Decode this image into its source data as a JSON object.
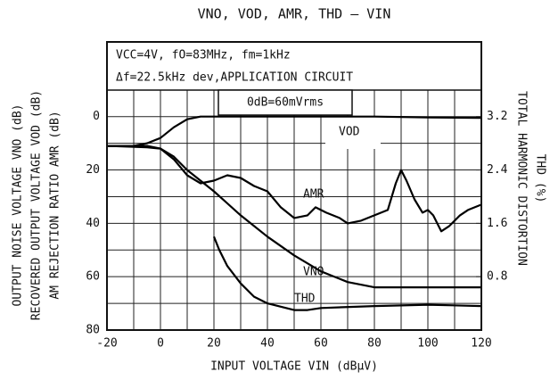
{
  "chart_data": {
    "type": "line",
    "title": "VNO, VOD, AMR, THD — VIN",
    "annotations": [
      "VCC=4V, fO=83MHz, fm=1kHz",
      "Δf=22.5kHz dev,APPLICATION CIRCUIT",
      "0dB=60mVrms"
    ],
    "x_label": "INPUT VOLTAGE  VIN (dBμV)",
    "y_label": [
      "OUTPUT NOISE VOLTAGE  VNO (dB)",
      "RECOVERED OUTPUT VOLTAGE  VOD (dB)",
      "AM REJECTION RATIO  AMR (dB)"
    ],
    "y2_label": [
      "TOTAL HARMONIC DISTORTION",
      "THD (%)"
    ],
    "xlim": [
      -20,
      120
    ],
    "xticks": [
      -20,
      0,
      20,
      40,
      60,
      80,
      100,
      120
    ],
    "ylim": [
      -28,
      80
    ],
    "y_reversed": true,
    "yticks": [
      0,
      20,
      40,
      60,
      80
    ],
    "y2lim": [
      0,
      4.32
    ],
    "y2ticks": [
      0.8,
      1.6,
      2.4,
      3.2
    ],
    "grid": true,
    "series": [
      {
        "name": "VOD",
        "color": "#000000",
        "x": [
          -20,
          -10,
          -5,
          0,
          5,
          10,
          15,
          20,
          40,
          60,
          80,
          100,
          120
        ],
        "values": [
          11,
          11,
          10,
          8,
          4,
          1,
          0,
          0,
          0,
          0,
          0,
          0.3,
          0.5
        ]
      },
      {
        "name": "AMR",
        "color": "#000000",
        "x": [
          -20,
          -5,
          0,
          5,
          10,
          15,
          20,
          25,
          30,
          35,
          40,
          45,
          50,
          55,
          58,
          62,
          67,
          70,
          75,
          80,
          85,
          88,
          90,
          92,
          95,
          98,
          100,
          102,
          105,
          108,
          112,
          115,
          120
        ],
        "values": [
          11,
          11.5,
          12,
          16,
          22,
          25,
          24,
          22,
          23,
          26,
          28,
          34,
          38,
          37,
          34,
          36,
          38,
          40,
          39,
          37,
          35,
          25,
          20,
          24,
          31,
          36,
          35,
          37,
          43,
          41,
          37,
          35,
          33
        ]
      },
      {
        "name": "VNO",
        "color": "#000000",
        "x": [
          -20,
          -5,
          0,
          5,
          10,
          20,
          30,
          40,
          50,
          60,
          70,
          80,
          90,
          100,
          120
        ],
        "values": [
          11,
          11,
          12,
          15,
          20,
          28,
          37,
          45,
          52,
          58,
          62,
          64,
          64,
          64,
          64
        ]
      },
      {
        "name": "THD",
        "color": "#000000",
        "axis": "y2",
        "x": [
          20,
          22,
          25,
          30,
          35,
          40,
          50,
          55,
          60,
          80,
          100,
          120
        ],
        "values": [
          1.4,
          1.2,
          0.96,
          0.7,
          0.5,
          0.4,
          0.3,
          0.3,
          0.33,
          0.36,
          0.38,
          0.36
        ]
      }
    ]
  }
}
